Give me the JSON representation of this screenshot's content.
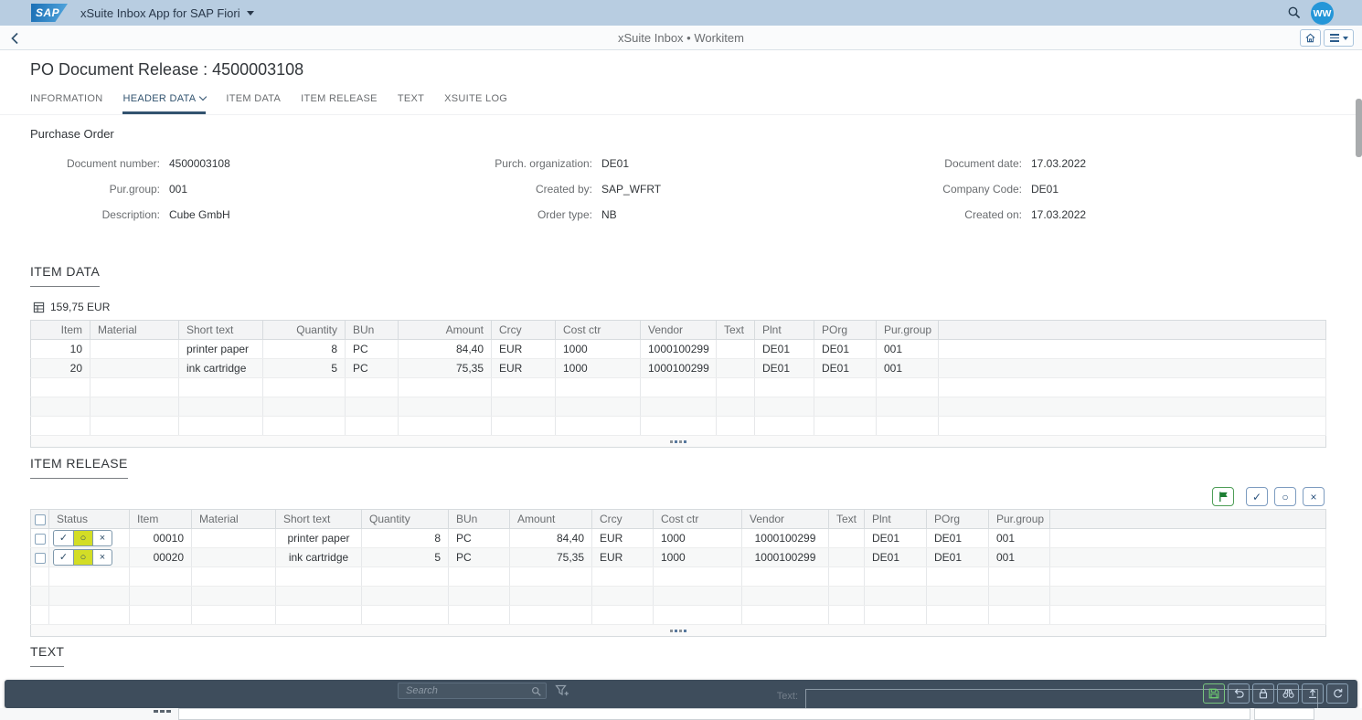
{
  "shell": {
    "logo_text": "SAP",
    "app_title": "xSuite Inbox App for SAP Fiori",
    "avatar_initials": "WW"
  },
  "nav": {
    "title": "xSuite Inbox • Workitem"
  },
  "page": {
    "title": "PO Document Release : 4500003108"
  },
  "tabs": [
    {
      "label": "INFORMATION",
      "selected": false,
      "chevron": false
    },
    {
      "label": "HEADER DATA",
      "selected": true,
      "chevron": true
    },
    {
      "label": "ITEM DATA",
      "selected": false,
      "chevron": false
    },
    {
      "label": "ITEM RELEASE",
      "selected": false,
      "chevron": false
    },
    {
      "label": "TEXT",
      "selected": false,
      "chevron": false
    },
    {
      "label": "XSUITE LOG",
      "selected": false,
      "chevron": false
    }
  ],
  "form": {
    "section_title": "Purchase Order",
    "columns": [
      [
        {
          "label": "Document number:",
          "value": "4500003108"
        },
        {
          "label": "Pur.group:",
          "value": "001"
        },
        {
          "label": "Description:",
          "value": "Cube GmbH"
        }
      ],
      [
        {
          "label": "Purch. organization:",
          "value": "DE01"
        },
        {
          "label": "Created by:",
          "value": "SAP_WFRT"
        },
        {
          "label": "Order type:",
          "value": "NB"
        }
      ],
      [
        {
          "label": "Document date:",
          "value": "17.03.2022"
        },
        {
          "label": "Company Code:",
          "value": "DE01"
        },
        {
          "label": "Created on:",
          "value": "17.03.2022"
        }
      ]
    ]
  },
  "item_data": {
    "heading": "ITEM DATA",
    "total": "159,75 EUR",
    "columns": [
      "Item",
      "Material",
      "Short text",
      "Quantity",
      "BUn",
      "Amount",
      "Crcy",
      "Cost ctr",
      "Vendor",
      "Text",
      "Plnt",
      "POrg",
      "Pur.group"
    ],
    "rows": [
      [
        "10",
        "",
        "printer paper",
        "8",
        "PC",
        "84,40",
        "EUR",
        "1000",
        "1000100299",
        "",
        "DE01",
        "DE01",
        "001"
      ],
      [
        "20",
        "",
        "ink cartridge",
        "5",
        "PC",
        "75,35",
        "EUR",
        "1000",
        "1000100299",
        "",
        "DE01",
        "DE01",
        "001"
      ]
    ],
    "empty_row_count": 3,
    "more_indicator": "...."
  },
  "item_release": {
    "heading": "ITEM RELEASE",
    "columns": [
      "Status",
      "Item",
      "Material",
      "Short text",
      "Quantity",
      "BUn",
      "Amount",
      "Crcy",
      "Cost ctr",
      "Vendor",
      "Text",
      "Plnt",
      "POrg",
      "Pur.group"
    ],
    "status_options": [
      "approve",
      "hold",
      "reject"
    ],
    "status_glyphs": {
      "approve": "✓",
      "hold": "○",
      "reject": "×"
    },
    "rows": [
      {
        "checked": false,
        "status_selected": "hold",
        "cells": [
          "00010",
          "",
          "printer paper",
          "8",
          "PC",
          "84,40",
          "EUR",
          "1000",
          "1000100299",
          "",
          "DE01",
          "DE01",
          "001"
        ]
      },
      {
        "checked": false,
        "status_selected": "hold",
        "cells": [
          "00020",
          "",
          "ink cartridge",
          "5",
          "PC",
          "75,35",
          "EUR",
          "1000",
          "1000100299",
          "",
          "DE01",
          "DE01",
          "001"
        ]
      }
    ],
    "empty_row_count": 3,
    "more_indicator": "....",
    "actions": [
      "flag",
      "approve-all",
      "reset-all",
      "reject-all"
    ]
  },
  "text_section": {
    "heading": "TEXT"
  },
  "footer": {
    "search_placeholder": "Search",
    "text_label": "Text:",
    "buttons": [
      "save",
      "undo",
      "lock",
      "display",
      "upload",
      "refresh"
    ]
  },
  "colors": {
    "shell_bg": "#b8cde1",
    "accent_blue": "#32536f",
    "status_highlight": "#d3dd26",
    "footer_bg": "#3e4d5c",
    "save_green": "#6fd16f",
    "avatar_blue": "#2496d8"
  }
}
